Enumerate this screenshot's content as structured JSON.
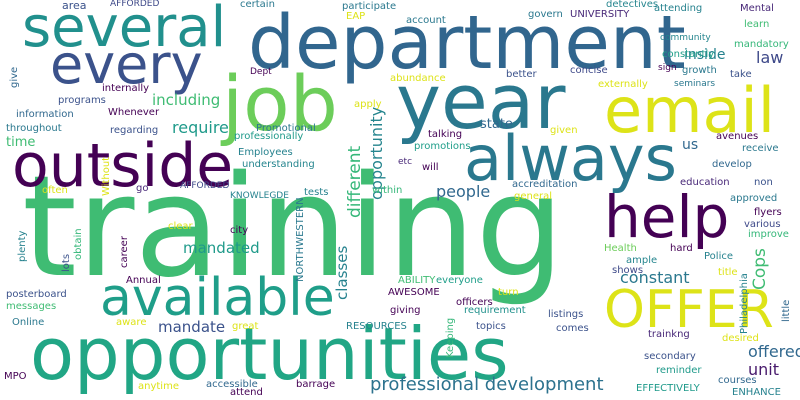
{
  "words": [
    {
      "text": "training",
      "color": "#3fbc73",
      "vertical": false
    },
    {
      "text": "opportunities",
      "color": "#21a685",
      "vertical": false
    },
    {
      "text": "department",
      "color": "#31668e",
      "vertical": false
    },
    {
      "text": "year",
      "color": "#2a788e",
      "vertical": false
    },
    {
      "text": "job",
      "color": "#6ccd5a",
      "vertical": false
    },
    {
      "text": "email",
      "color": "#dde318",
      "vertical": false
    },
    {
      "text": "always",
      "color": "#2a788e",
      "vertical": false
    },
    {
      "text": "outside",
      "color": "#440154",
      "vertical": false
    },
    {
      "text": "several",
      "color": "#21908d",
      "vertical": false
    },
    {
      "text": "every",
      "color": "#3b528b",
      "vertical": false
    },
    {
      "text": "available",
      "color": "#1f9e89",
      "vertical": false
    },
    {
      "text": "help",
      "color": "#440154",
      "vertical": false
    },
    {
      "text": "OFFER",
      "color": "#dde318",
      "vertical": false
    },
    {
      "text": "professional development",
      "color": "#2c728e",
      "vertical": false
    },
    {
      "text": "opportunity",
      "color": "#25858e",
      "vertical": true
    },
    {
      "text": "different",
      "color": "#35b779",
      "vertical": true
    },
    {
      "text": "classes",
      "color": "#26828e",
      "vertical": true
    },
    {
      "text": "Cops",
      "color": "#3fbc73",
      "vertical": true
    },
    {
      "text": "mandated",
      "color": "#1f9a8a",
      "vertical": false
    },
    {
      "text": "including",
      "color": "#3fbc73",
      "vertical": false
    },
    {
      "text": "require",
      "color": "#1f9a8a",
      "vertical": false
    },
    {
      "text": "constant",
      "color": "#2a788e",
      "vertical": false
    },
    {
      "text": "people",
      "color": "#31688e",
      "vertical": false
    },
    {
      "text": "mandate",
      "color": "#3b528b",
      "vertical": false
    },
    {
      "text": "unit",
      "color": "#481a6c",
      "vertical": false
    },
    {
      "text": "offered",
      "color": "#31688e",
      "vertical": false
    },
    {
      "text": "law",
      "color": "#3e4989",
      "vertical": false
    },
    {
      "text": "inside",
      "color": "#26828e",
      "vertical": false
    },
    {
      "text": "state",
      "color": "#31688e",
      "vertical": false
    },
    {
      "text": "us",
      "color": "#31688e",
      "vertical": false
    },
    {
      "text": "time",
      "color": "#3fbc73",
      "vertical": false
    },
    {
      "text": "area",
      "color": "#3b528b",
      "vertical": false
    },
    {
      "text": "AFFORDED",
      "color": "#3e4989",
      "vertical": false
    },
    {
      "text": "certain",
      "color": "#2a788e",
      "vertical": false
    },
    {
      "text": "participate",
      "color": "#2a788e",
      "vertical": false
    },
    {
      "text": "EAP",
      "color": "#dde318",
      "vertical": false
    },
    {
      "text": "account",
      "color": "#2a788e",
      "vertical": false
    },
    {
      "text": "govern",
      "color": "#2a788e",
      "vertical": false
    },
    {
      "text": "UNIVERSITY",
      "color": "#482878",
      "vertical": false
    },
    {
      "text": "detectives",
      "color": "#25858e",
      "vertical": false
    },
    {
      "text": "attending",
      "color": "#26828e",
      "vertical": false
    },
    {
      "text": "Mental",
      "color": "#482878",
      "vertical": false
    },
    {
      "text": "community",
      "color": "#25858e",
      "vertical": false
    },
    {
      "text": "learn",
      "color": "#3fbc73",
      "vertical": false
    },
    {
      "text": "mandatory",
      "color": "#35b779",
      "vertical": false
    },
    {
      "text": "give",
      "color": "#31688e",
      "vertical": true
    },
    {
      "text": "Dept",
      "color": "#440154",
      "vertical": false
    },
    {
      "text": "abundance",
      "color": "#dde318",
      "vertical": false
    },
    {
      "text": "better",
      "color": "#3b528b",
      "vertical": false
    },
    {
      "text": "concise",
      "color": "#3e4989",
      "vertical": false
    },
    {
      "text": "externally",
      "color": "#dde318",
      "vertical": false
    },
    {
      "text": "constantly",
      "color": "#1f9e89",
      "vertical": false
    },
    {
      "text": "sign",
      "color": "#440154",
      "vertical": false
    },
    {
      "text": "growth",
      "color": "#2a788e",
      "vertical": false
    },
    {
      "text": "take",
      "color": "#3b528b",
      "vertical": false
    },
    {
      "text": "seminars",
      "color": "#2a788e",
      "vertical": false
    },
    {
      "text": "internally",
      "color": "#440154",
      "vertical": false
    },
    {
      "text": "programs",
      "color": "#3b528b",
      "vertical": false
    },
    {
      "text": "apply",
      "color": "#dde318",
      "vertical": false
    },
    {
      "text": "information",
      "color": "#31688e",
      "vertical": false
    },
    {
      "text": "Whenever",
      "color": "#440154",
      "vertical": false
    },
    {
      "text": "throughout",
      "color": "#2a788e",
      "vertical": false
    },
    {
      "text": "regarding",
      "color": "#3b528b",
      "vertical": false
    },
    {
      "text": "Promotional",
      "color": "#2a788e",
      "vertical": false
    },
    {
      "text": "professionally",
      "color": "#1f9a8a",
      "vertical": false
    },
    {
      "text": "given",
      "color": "#dde318",
      "vertical": false
    },
    {
      "text": "talking",
      "color": "#440154",
      "vertical": false
    },
    {
      "text": "promotions",
      "color": "#1f9e89",
      "vertical": false
    },
    {
      "text": "avenues",
      "color": "#440154",
      "vertical": false
    },
    {
      "text": "receive",
      "color": "#2a788e",
      "vertical": false
    },
    {
      "text": "Employees",
      "color": "#26828e",
      "vertical": false
    },
    {
      "text": "understanding",
      "color": "#25858e",
      "vertical": false
    },
    {
      "text": "etc",
      "color": "#482878",
      "vertical": false
    },
    {
      "text": "will",
      "color": "#440154",
      "vertical": false
    },
    {
      "text": "develop",
      "color": "#31688e",
      "vertical": false
    },
    {
      "text": "Without",
      "color": "#dde318",
      "vertical": true
    },
    {
      "text": "often",
      "color": "#dde318",
      "vertical": false
    },
    {
      "text": "go",
      "color": "#482878",
      "vertical": false
    },
    {
      "text": "AFFORDED",
      "color": "#3e4989",
      "vertical": false
    },
    {
      "text": "KNOWLEGDE",
      "color": "#26828e",
      "vertical": false
    },
    {
      "text": "tests",
      "color": "#26828e",
      "vertical": false
    },
    {
      "text": "within",
      "color": "#35b779",
      "vertical": false
    },
    {
      "text": "accreditation",
      "color": "#31688e",
      "vertical": false
    },
    {
      "text": "general",
      "color": "#dde318",
      "vertical": false
    },
    {
      "text": "education",
      "color": "#482878",
      "vertical": false
    },
    {
      "text": "non",
      "color": "#3b528b",
      "vertical": false
    },
    {
      "text": "approved",
      "color": "#2a788e",
      "vertical": false
    },
    {
      "text": "flyers",
      "color": "#440154",
      "vertical": false
    },
    {
      "text": "various",
      "color": "#3e4989",
      "vertical": false
    },
    {
      "text": "improve",
      "color": "#35b779",
      "vertical": false
    },
    {
      "text": "plenty",
      "color": "#26828e",
      "vertical": true
    },
    {
      "text": "lots",
      "color": "#3b528b",
      "vertical": true
    },
    {
      "text": "obtain",
      "color": "#35b779",
      "vertical": true
    },
    {
      "text": "career",
      "color": "#440154",
      "vertical": true
    },
    {
      "text": "clear",
      "color": "#dde318",
      "vertical": false
    },
    {
      "text": "city",
      "color": "#440154",
      "vertical": false
    },
    {
      "text": "NORTHWESTERN",
      "color": "#2a788e",
      "vertical": true
    },
    {
      "text": "Health",
      "color": "#6ccd5a",
      "vertical": false
    },
    {
      "text": "ample",
      "color": "#25858e",
      "vertical": false
    },
    {
      "text": "shows",
      "color": "#3e4989",
      "vertical": false
    },
    {
      "text": "hard",
      "color": "#440154",
      "vertical": false
    },
    {
      "text": "Police",
      "color": "#26828e",
      "vertical": false
    },
    {
      "text": "title",
      "color": "#dde318",
      "vertical": false
    },
    {
      "text": "ABILITY",
      "color": "#3fbc73",
      "vertical": false
    },
    {
      "text": "everyone",
      "color": "#1f9e89",
      "vertical": false
    },
    {
      "text": "AWESOME",
      "color": "#440154",
      "vertical": false
    },
    {
      "text": "turn",
      "color": "#dde318",
      "vertical": false
    },
    {
      "text": "officers",
      "color": "#440154",
      "vertical": false
    },
    {
      "text": "requirement",
      "color": "#21918c",
      "vertical": false
    },
    {
      "text": "Keeping",
      "color": "#35b779",
      "vertical": true
    },
    {
      "text": "listings",
      "color": "#3b528b",
      "vertical": false
    },
    {
      "text": "comes",
      "color": "#3b528b",
      "vertical": false
    },
    {
      "text": "Philadelphia",
      "color": "#26828e",
      "vertical": true
    },
    {
      "text": "little",
      "color": "#31688e",
      "vertical": true
    },
    {
      "text": "posterboard",
      "color": "#3b528b",
      "vertical": false
    },
    {
      "text": "messages",
      "color": "#3fbc73",
      "vertical": false
    },
    {
      "text": "Online",
      "color": "#2a788e",
      "vertical": false
    },
    {
      "text": "Annual",
      "color": "#440154",
      "vertical": false
    },
    {
      "text": "aware",
      "color": "#dde318",
      "vertical": false
    },
    {
      "text": "giving",
      "color": "#440154",
      "vertical": false
    },
    {
      "text": "RESOURCES",
      "color": "#26828e",
      "vertical": false
    },
    {
      "text": "great",
      "color": "#dde318",
      "vertical": false
    },
    {
      "text": "topics",
      "color": "#3b528b",
      "vertical": false
    },
    {
      "text": "trainkng",
      "color": "#482878",
      "vertical": false
    },
    {
      "text": "desired",
      "color": "#dde318",
      "vertical": false
    },
    {
      "text": "secondary",
      "color": "#3b528b",
      "vertical": false
    },
    {
      "text": "reminder",
      "color": "#1f9a8a",
      "vertical": false
    },
    {
      "text": "MPO",
      "color": "#440154",
      "vertical": false
    },
    {
      "text": "anytime",
      "color": "#dde318",
      "vertical": false
    },
    {
      "text": "accessible",
      "color": "#31688e",
      "vertical": false
    },
    {
      "text": "attend",
      "color": "#440154",
      "vertical": false
    },
    {
      "text": "barrage",
      "color": "#440154",
      "vertical": false
    },
    {
      "text": "EFFECTIVELY",
      "color": "#1f9a8a",
      "vertical": false
    },
    {
      "text": "courses",
      "color": "#31688e",
      "vertical": false
    },
    {
      "text": "ENHANCE",
      "color": "#26828e",
      "vertical": false
    }
  ]
}
